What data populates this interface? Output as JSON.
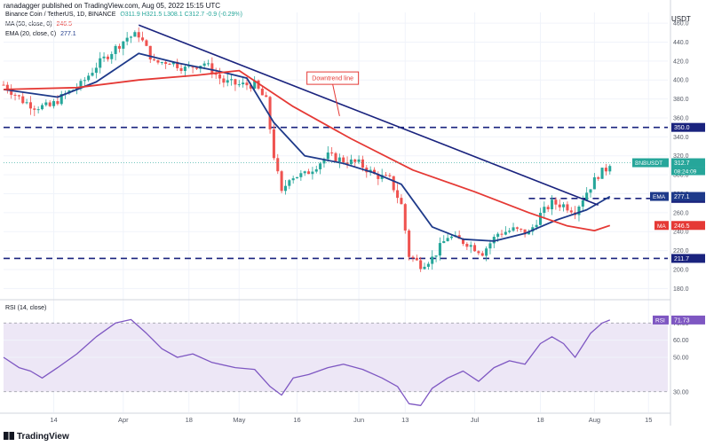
{
  "header": {
    "publisher_text": "ranadagger published on TradingView.com, Aug 05, 2022 15:15 UTC",
    "symbol": "Binance Coin / TetherUS, 1D, BINANCE",
    "ohlc": "O311.9 H321.5 L308.1 C312.7 -0.9 (-0.29%)",
    "ma_label": "MA (50, close, 0)",
    "ma_value": "246.5",
    "ema_label": "EMA (20, close, 0)",
    "ema_value": "277.1",
    "currency": "USDT"
  },
  "footer": {
    "brand": "TradingView"
  },
  "colors": {
    "up": "#26a69a",
    "down": "#ef5350",
    "ema": "#1e3a8a",
    "ma": "#e53935",
    "level": "#1a237e",
    "rsi": "#7e57c2",
    "rsi_band": "#ede7f6",
    "axis_text": "#555a66"
  },
  "chart_data": [
    {
      "type": "candlestick",
      "title": "Binance Coin / TetherUS, 1D, BINANCE",
      "ylabel": "USDT",
      "ylim": [
        170,
        462
      ],
      "y_ticks": [
        180,
        200,
        220,
        240,
        260,
        280,
        300,
        320,
        340,
        360,
        380,
        400,
        420,
        440,
        460
      ],
      "x_ticks": [
        {
          "label": "14",
          "date": "2022-03-14"
        },
        {
          "label": "Apr",
          "date": "2022-04-01"
        },
        {
          "label": "18",
          "date": "2022-04-18"
        },
        {
          "label": "May",
          "date": "2022-05-01"
        },
        {
          "label": "16",
          "date": "2022-05-16"
        },
        {
          "label": "Jun",
          "date": "2022-06-01"
        },
        {
          "label": "13",
          "date": "2022-06-13"
        },
        {
          "label": "Jul",
          "date": "2022-07-01"
        },
        {
          "label": "18",
          "date": "2022-07-18"
        },
        {
          "label": "Aug",
          "date": "2022-08-01"
        },
        {
          "label": "15",
          "date": "2022-08-15"
        }
      ],
      "xlim": [
        "2022-03-01",
        "2022-08-20"
      ],
      "price_path": [
        [
          "2022-03-01",
          395
        ],
        [
          "2022-03-06",
          378
        ],
        [
          "2022-03-09",
          372
        ],
        [
          "2022-03-13",
          372
        ],
        [
          "2022-03-17",
          385
        ],
        [
          "2022-03-21",
          395
        ],
        [
          "2022-03-25",
          415
        ],
        [
          "2022-03-29",
          430
        ],
        [
          "2022-04-02",
          445
        ],
        [
          "2022-04-05",
          448
        ],
        [
          "2022-04-09",
          418
        ],
        [
          "2022-04-13",
          420
        ],
        [
          "2022-04-17",
          412
        ],
        [
          "2022-04-22",
          418
        ],
        [
          "2022-04-27",
          398
        ],
        [
          "2022-05-01",
          395
        ],
        [
          "2022-05-05",
          395
        ],
        [
          "2022-05-08",
          378
        ],
        [
          "2022-05-10",
          320
        ],
        [
          "2022-05-12",
          280
        ],
        [
          "2022-05-14",
          298
        ],
        [
          "2022-05-18",
          300
        ],
        [
          "2022-05-24",
          320
        ],
        [
          "2022-05-28",
          315
        ],
        [
          "2022-06-01",
          312
        ],
        [
          "2022-06-05",
          300
        ],
        [
          "2022-06-09",
          295
        ],
        [
          "2022-06-12",
          268
        ],
        [
          "2022-06-14",
          215
        ],
        [
          "2022-06-17",
          205
        ],
        [
          "2022-06-20",
          212
        ],
        [
          "2022-06-24",
          235
        ],
        [
          "2022-06-29",
          228
        ],
        [
          "2022-07-03",
          218
        ],
        [
          "2022-07-07",
          238
        ],
        [
          "2022-07-11",
          242
        ],
        [
          "2022-07-15",
          238
        ],
        [
          "2022-07-18",
          258
        ],
        [
          "2022-07-21",
          270
        ],
        [
          "2022-07-24",
          268
        ],
        [
          "2022-07-27",
          262
        ],
        [
          "2022-07-30",
          282
        ],
        [
          "2022-08-02",
          300
        ],
        [
          "2022-08-04",
          306
        ],
        [
          "2022-08-05",
          312.7
        ]
      ],
      "series": [
        {
          "name": "EMA (20, close, 0)",
          "color": "#1e3a8a",
          "points": [
            [
              "2022-03-01",
              390
            ],
            [
              "2022-03-15",
              382
            ],
            [
              "2022-03-25",
              398
            ],
            [
              "2022-04-05",
              428
            ],
            [
              "2022-04-15",
              418
            ],
            [
              "2022-04-25",
              410
            ],
            [
              "2022-05-03",
              402
            ],
            [
              "2022-05-10",
              355
            ],
            [
              "2022-05-18",
              320
            ],
            [
              "2022-05-28",
              312
            ],
            [
              "2022-06-05",
              302
            ],
            [
              "2022-06-12",
              290
            ],
            [
              "2022-06-20",
              245
            ],
            [
              "2022-06-28",
              232
            ],
            [
              "2022-07-06",
              230
            ],
            [
              "2022-07-14",
              238
            ],
            [
              "2022-07-22",
              252
            ],
            [
              "2022-07-30",
              263
            ],
            [
              "2022-08-05",
              277.1
            ]
          ]
        },
        {
          "name": "MA (50, close, 0)",
          "color": "#e53935",
          "points": [
            [
              "2022-03-01",
              390
            ],
            [
              "2022-03-20",
              392
            ],
            [
              "2022-04-05",
              400
            ],
            [
              "2022-04-20",
              405
            ],
            [
              "2022-05-01",
              410
            ],
            [
              "2022-05-15",
              372
            ],
            [
              "2022-05-30",
              338
            ],
            [
              "2022-06-15",
              305
            ],
            [
              "2022-07-01",
              282
            ],
            [
              "2022-07-15",
              260
            ],
            [
              "2022-07-25",
              246
            ],
            [
              "2022-08-01",
              241
            ],
            [
              "2022-08-05",
              246.5
            ]
          ]
        }
      ],
      "horizontal_levels": [
        {
          "value": 350,
          "label": "350.0",
          "color": "#1a237e",
          "style": "dashed"
        },
        {
          "value": 275,
          "label": "275.0",
          "color": "#1a237e",
          "style": "dashed",
          "start": "2022-07-15"
        },
        {
          "value": 211.7,
          "label": "211.7",
          "color": "#1a237e",
          "style": "dashed"
        }
      ],
      "trendlines": [
        {
          "name": "Downtrend line",
          "from": [
            "2022-04-05",
            458
          ],
          "to": [
            "2022-08-02",
            268
          ],
          "color": "#1a237e"
        }
      ],
      "annotations": [
        {
          "text": "Downtrend line",
          "color": "#e53935",
          "box_at": [
            "2022-05-25",
            402
          ],
          "arrow_to": [
            "2022-05-27",
            362
          ]
        }
      ],
      "price_labels": [
        {
          "label": "BNBUSDT",
          "value": 312.7,
          "text": "312.7",
          "countdown": "08:24:09",
          "color": "#26a69a"
        },
        {
          "label": "EMA",
          "value": 277.1,
          "text": "277.1",
          "color": "#1e3a8a"
        },
        {
          "label": "MA",
          "value": 246.5,
          "text": "246.5",
          "color": "#e53935"
        }
      ]
    },
    {
      "type": "line",
      "title": "RSI (14, close)",
      "value_label": "71.73",
      "ylim": [
        18,
        82
      ],
      "y_ticks": [
        30,
        50,
        60,
        70
      ],
      "band": [
        30,
        70
      ],
      "color": "#7e57c2",
      "points": [
        [
          "2022-03-01",
          50
        ],
        [
          "2022-03-05",
          44
        ],
        [
          "2022-03-08",
          42
        ],
        [
          "2022-03-11",
          38
        ],
        [
          "2022-03-15",
          44
        ],
        [
          "2022-03-20",
          52
        ],
        [
          "2022-03-25",
          62
        ],
        [
          "2022-03-30",
          70
        ],
        [
          "2022-04-03",
          72
        ],
        [
          "2022-04-07",
          64
        ],
        [
          "2022-04-11",
          55
        ],
        [
          "2022-04-15",
          50
        ],
        [
          "2022-04-19",
          52
        ],
        [
          "2022-04-24",
          47
        ],
        [
          "2022-04-30",
          44
        ],
        [
          "2022-05-05",
          43
        ],
        [
          "2022-05-09",
          33
        ],
        [
          "2022-05-12",
          28
        ],
        [
          "2022-05-15",
          38
        ],
        [
          "2022-05-19",
          40
        ],
        [
          "2022-05-24",
          44
        ],
        [
          "2022-05-28",
          46
        ],
        [
          "2022-06-02",
          43
        ],
        [
          "2022-06-07",
          38
        ],
        [
          "2022-06-11",
          33
        ],
        [
          "2022-06-14",
          23
        ],
        [
          "2022-06-17",
          22
        ],
        [
          "2022-06-20",
          32
        ],
        [
          "2022-06-24",
          38
        ],
        [
          "2022-06-28",
          42
        ],
        [
          "2022-07-02",
          36
        ],
        [
          "2022-07-06",
          44
        ],
        [
          "2022-07-10",
          48
        ],
        [
          "2022-07-14",
          46
        ],
        [
          "2022-07-18",
          58
        ],
        [
          "2022-07-21",
          62
        ],
        [
          "2022-07-24",
          58
        ],
        [
          "2022-07-27",
          50
        ],
        [
          "2022-07-31",
          64
        ],
        [
          "2022-08-03",
          70
        ],
        [
          "2022-08-05",
          71.73
        ]
      ]
    }
  ]
}
